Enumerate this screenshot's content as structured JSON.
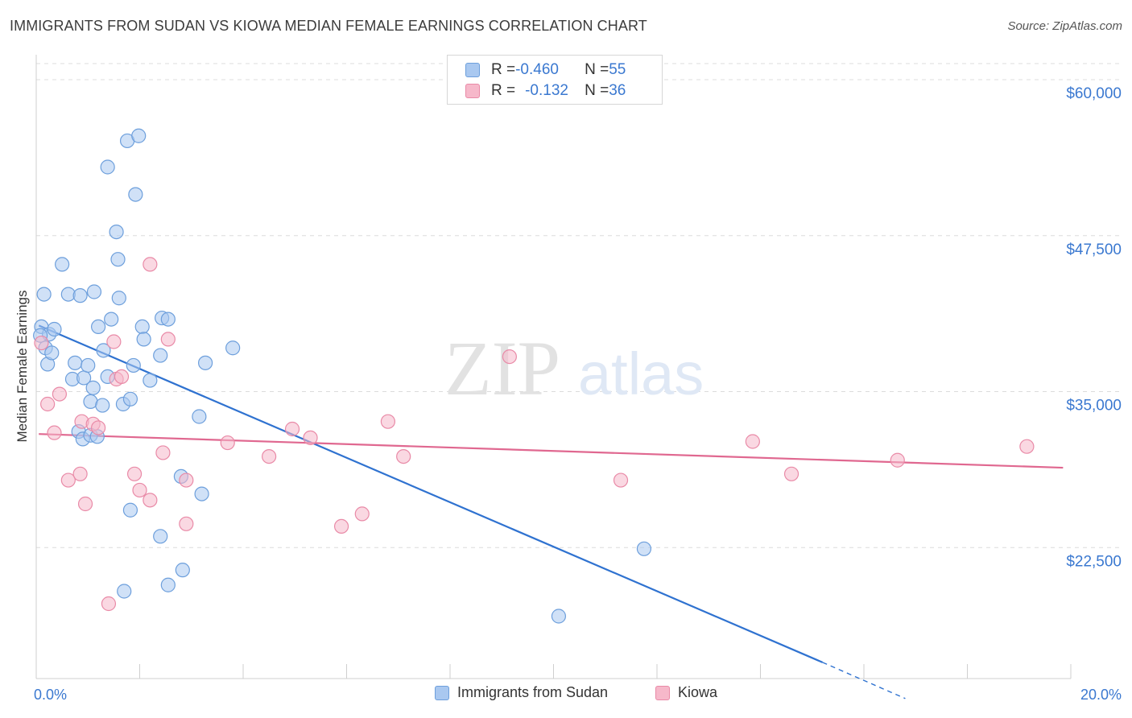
{
  "title": "IMMIGRANTS FROM SUDAN VS KIOWA MEDIAN FEMALE EARNINGS CORRELATION CHART",
  "source": "Source: ZipAtlas.com",
  "watermark": {
    "zip": "ZIP",
    "atlas": "atlas"
  },
  "legend_top": [
    {
      "r_label": "R = ",
      "r_value": "-0.460",
      "n_label": "N = ",
      "n_value": "55",
      "color": "#a9c8f0"
    },
    {
      "r_label": "R = ",
      "r_value": "-0.132",
      "n_label": "N = ",
      "n_value": "36",
      "color": "#f6b8ca"
    }
  ],
  "chart_data": {
    "type": "scatter",
    "ylabel": "Median Female Earnings",
    "xlabel": "",
    "xlim": [
      0,
      20
    ],
    "ylim": [
      12000,
      62000
    ],
    "x_tick_labels": {
      "left": "0.0%",
      "right": "20.0%"
    },
    "y_ticks": [
      {
        "value": 60000,
        "label": "$60,000"
      },
      {
        "value": 47500,
        "label": "$47,500"
      },
      {
        "value": 35000,
        "label": "$35,000"
      },
      {
        "value": 22500,
        "label": "$22,500"
      }
    ],
    "grid": true,
    "legend_position": "bottom",
    "series": [
      {
        "name": "Immigrants from Sudan",
        "color": "#a9c8f0",
        "stroke": "#6d9fdc",
        "line_color": "#2f72d0",
        "trend": {
          "x0": 0.05,
          "y0": 40300,
          "x1": 15.2,
          "y1": 13300,
          "dash_to_x": 16.8,
          "dash_to_y": 10400
        },
        "points": [
          [
            0.1,
            40200
          ],
          [
            0.18,
            38500
          ],
          [
            0.22,
            37200
          ],
          [
            0.25,
            39600
          ],
          [
            0.15,
            42800
          ],
          [
            0.3,
            38100
          ],
          [
            0.35,
            40000
          ],
          [
            0.5,
            45200
          ],
          [
            0.62,
            42800
          ],
          [
            0.85,
            42700
          ],
          [
            0.7,
            36000
          ],
          [
            0.75,
            37300
          ],
          [
            0.82,
            31800
          ],
          [
            0.9,
            31200
          ],
          [
            0.92,
            36100
          ],
          [
            1.0,
            37100
          ],
          [
            1.05,
            34200
          ],
          [
            1.05,
            31500
          ],
          [
            1.1,
            35300
          ],
          [
            1.12,
            43000
          ],
          [
            1.18,
            31400
          ],
          [
            1.2,
            40200
          ],
          [
            1.28,
            33900
          ],
          [
            1.3,
            38300
          ],
          [
            1.38,
            36200
          ],
          [
            1.38,
            53000
          ],
          [
            1.45,
            40800
          ],
          [
            1.55,
            47800
          ],
          [
            1.58,
            45600
          ],
          [
            1.6,
            42500
          ],
          [
            1.68,
            34000
          ],
          [
            1.76,
            55100
          ],
          [
            1.82,
            25500
          ],
          [
            1.82,
            34400
          ],
          [
            1.88,
            37100
          ],
          [
            1.92,
            50800
          ],
          [
            1.98,
            55500
          ],
          [
            2.05,
            40200
          ],
          [
            2.08,
            39200
          ],
          [
            2.2,
            35900
          ],
          [
            2.4,
            23400
          ],
          [
            2.4,
            37900
          ],
          [
            2.43,
            40900
          ],
          [
            2.55,
            19500
          ],
          [
            2.55,
            40800
          ],
          [
            2.8,
            28200
          ],
          [
            2.83,
            20700
          ],
          [
            3.15,
            33000
          ],
          [
            3.2,
            26800
          ],
          [
            3.27,
            37300
          ],
          [
            3.8,
            38500
          ],
          [
            1.7,
            19000
          ],
          [
            10.1,
            17000
          ],
          [
            11.75,
            22400
          ],
          [
            0.08,
            39500
          ]
        ]
      },
      {
        "name": "Kiowa",
        "color": "#f6b8ca",
        "stroke": "#e98aa7",
        "line_color": "#e06890",
        "trend": {
          "x0": 0.05,
          "y0": 31600,
          "x1": 19.85,
          "y1": 28900
        },
        "points": [
          [
            0.1,
            38900
          ],
          [
            0.22,
            34000
          ],
          [
            0.35,
            31700
          ],
          [
            0.45,
            34800
          ],
          [
            0.62,
            27900
          ],
          [
            0.85,
            28400
          ],
          [
            0.88,
            32600
          ],
          [
            0.95,
            26000
          ],
          [
            1.1,
            32400
          ],
          [
            1.2,
            32100
          ],
          [
            1.4,
            18000
          ],
          [
            1.5,
            39000
          ],
          [
            1.55,
            36000
          ],
          [
            1.65,
            36200
          ],
          [
            1.9,
            28400
          ],
          [
            2.0,
            27100
          ],
          [
            2.2,
            26300
          ],
          [
            2.2,
            45200
          ],
          [
            2.45,
            30100
          ],
          [
            2.55,
            39200
          ],
          [
            2.9,
            27900
          ],
          [
            2.9,
            24400
          ],
          [
            3.7,
            30900
          ],
          [
            4.5,
            29800
          ],
          [
            4.95,
            32000
          ],
          [
            5.3,
            31300
          ],
          [
            5.9,
            24200
          ],
          [
            6.3,
            25200
          ],
          [
            6.8,
            32600
          ],
          [
            7.1,
            29800
          ],
          [
            9.15,
            37800
          ],
          [
            11.3,
            27900
          ],
          [
            13.85,
            31000
          ],
          [
            14.6,
            28400
          ],
          [
            16.65,
            29500
          ],
          [
            19.15,
            30600
          ]
        ]
      }
    ]
  }
}
